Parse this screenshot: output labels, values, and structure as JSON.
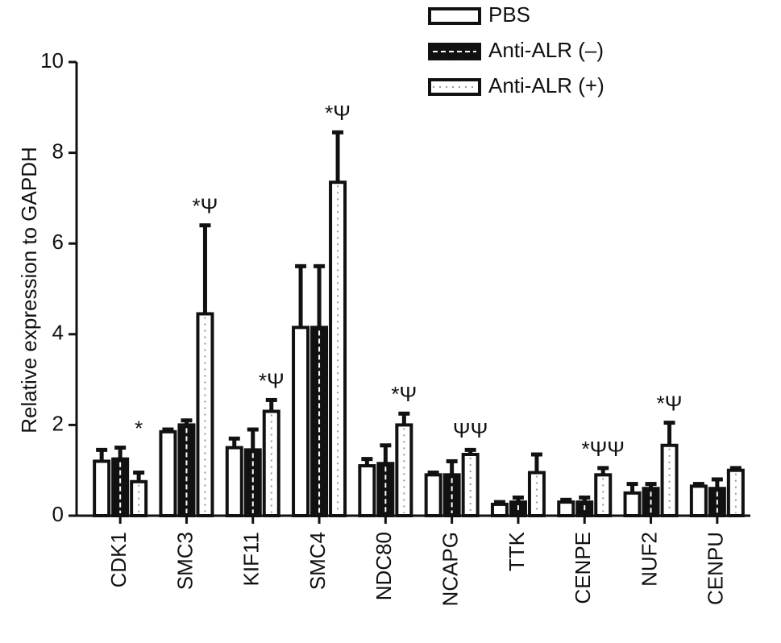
{
  "chart_data": {
    "type": "bar",
    "y_label": "Relative expression to GAPDH",
    "categories": [
      "CDK1",
      "SMC3",
      "KIF11",
      "SMC4",
      "NDC80",
      "NCAPG",
      "TTK",
      "CENPE",
      "NUF2",
      "CENPU"
    ],
    "series": [
      {
        "name": "PBS",
        "color": "#ffffff",
        "pattern": "none",
        "values": [
          1.2,
          1.85,
          1.5,
          4.15,
          1.1,
          0.9,
          0.25,
          0.3,
          0.5,
          0.65
        ],
        "errors": [
          0.25,
          0.05,
          0.2,
          1.35,
          0.15,
          0.05,
          0.05,
          0.05,
          0.2,
          0.05
        ]
      },
      {
        "name": "Anti-ALR (–)",
        "color": "#111111",
        "pattern": "dashed",
        "values": [
          1.25,
          2.0,
          1.45,
          4.15,
          1.15,
          0.9,
          0.3,
          0.3,
          0.6,
          0.6
        ],
        "errors": [
          0.25,
          0.1,
          0.45,
          1.35,
          0.4,
          0.3,
          0.1,
          0.1,
          0.1,
          0.2
        ]
      },
      {
        "name": "Anti-ALR (+)",
        "color": "#ffffff",
        "pattern": "dotted",
        "values": [
          0.75,
          4.45,
          2.3,
          7.35,
          2.0,
          1.35,
          0.95,
          0.9,
          1.55,
          1.0
        ],
        "errors": [
          0.2,
          1.95,
          0.25,
          1.1,
          0.25,
          0.1,
          0.4,
          0.15,
          0.5,
          0.05
        ]
      }
    ],
    "annotations": [
      "*",
      "*Ψ",
      "*Ψ",
      "*Ψ",
      "*Ψ",
      "ΨΨ",
      null,
      "*ΨΨ",
      "*Ψ",
      null
    ],
    "ylim": [
      0,
      10
    ],
    "yticks": [
      0,
      2,
      4,
      6,
      8,
      10
    ],
    "grid": false
  }
}
